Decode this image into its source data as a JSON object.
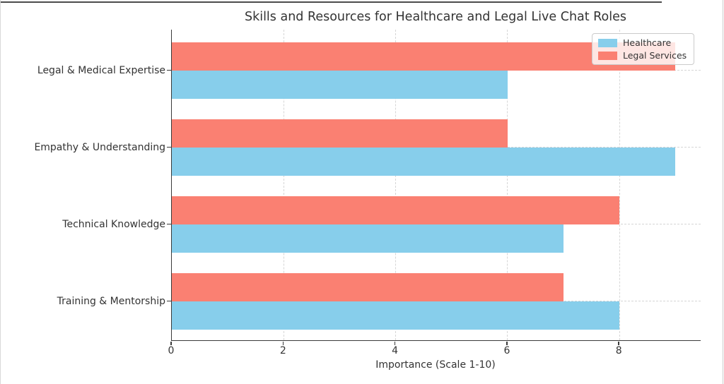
{
  "chart_data": {
    "type": "bar",
    "orientation": "horizontal",
    "title": "Skills and Resources for Healthcare and Legal Live Chat Roles",
    "xlabel": "Importance (Scale 1-10)",
    "categories": [
      "Legal & Medical Expertise",
      "Empathy & Understanding",
      "Technical Knowledge",
      "Training & Mentorship"
    ],
    "series": [
      {
        "name": "Healthcare",
        "color": "#87CEEB",
        "values": [
          6,
          9,
          7,
          8
        ]
      },
      {
        "name": "Legal Services",
        "color": "#FA8072",
        "values": [
          9,
          6,
          8,
          7
        ]
      }
    ],
    "x_ticks": [
      0,
      2,
      4,
      6,
      8
    ],
    "xlim": [
      0,
      9.45
    ],
    "grid": true,
    "grid_style": "dashed",
    "legend_position": "upper-right"
  },
  "style_colors": {
    "text": "#333333",
    "spine": "#3a3a3a",
    "grid": "#d6d6d6",
    "legend_border": "#cbcbcb"
  }
}
